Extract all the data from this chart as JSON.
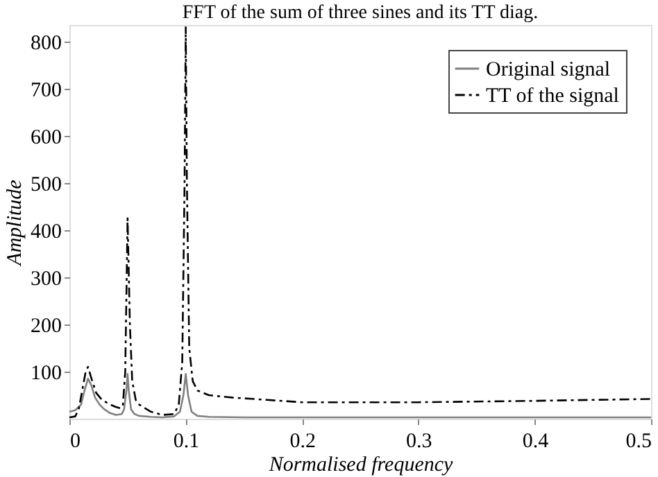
{
  "chart_data": {
    "type": "line",
    "title": "FFT of the sum of three sines and its TT diag.",
    "xlabel": "Normalised frequency",
    "ylabel": "Amplitude",
    "xlim": [
      0,
      0.5
    ],
    "ylim": [
      0,
      835
    ],
    "xticks": [
      0,
      0.1,
      0.2,
      0.3,
      0.4,
      0.5
    ],
    "yticks": [
      100,
      200,
      300,
      400,
      500,
      600,
      700,
      800
    ],
    "grid": false,
    "legend": "top right",
    "marker": "none",
    "series": [
      {
        "name": "Original signal",
        "color": "#808080",
        "line_style": "solid",
        "x": [
          0,
          0.005,
          0.01,
          0.013,
          0.016,
          0.019,
          0.022,
          0.026,
          0.03,
          0.035,
          0.04,
          0.045,
          0.047,
          0.049,
          0.05,
          0.051,
          0.053,
          0.056,
          0.06,
          0.07,
          0.08,
          0.09,
          0.095,
          0.098,
          0.1,
          0.102,
          0.105,
          0.11,
          0.12,
          0.15,
          0.2,
          0.3,
          0.4,
          0.5
        ],
        "values": [
          15,
          18,
          30,
          60,
          85,
          70,
          45,
          30,
          20,
          12,
          8,
          10,
          20,
          60,
          95,
          60,
          20,
          10,
          6,
          4,
          3,
          5,
          15,
          50,
          95,
          50,
          15,
          6,
          4,
          3,
          3,
          3,
          3,
          3
        ]
      },
      {
        "name": "TT of the signal",
        "color": "#000000",
        "line_style": "dashed",
        "x": [
          0,
          0.005,
          0.008,
          0.011,
          0.014,
          0.016,
          0.019,
          0.023,
          0.028,
          0.035,
          0.04,
          0.044,
          0.046,
          0.048,
          0.05,
          0.052,
          0.054,
          0.057,
          0.06,
          0.07,
          0.08,
          0.09,
          0.094,
          0.097,
          0.099,
          0.1,
          0.101,
          0.103,
          0.106,
          0.11,
          0.12,
          0.14,
          0.17,
          0.2,
          0.3,
          0.4,
          0.5
        ],
        "values": [
          3,
          5,
          20,
          60,
          100,
          110,
          85,
          55,
          40,
          30,
          25,
          22,
          30,
          100,
          425,
          200,
          80,
          40,
          30,
          15,
          8,
          10,
          30,
          120,
          500,
          830,
          500,
          150,
          80,
          60,
          50,
          45,
          40,
          35,
          35,
          38,
          42
        ]
      }
    ]
  }
}
